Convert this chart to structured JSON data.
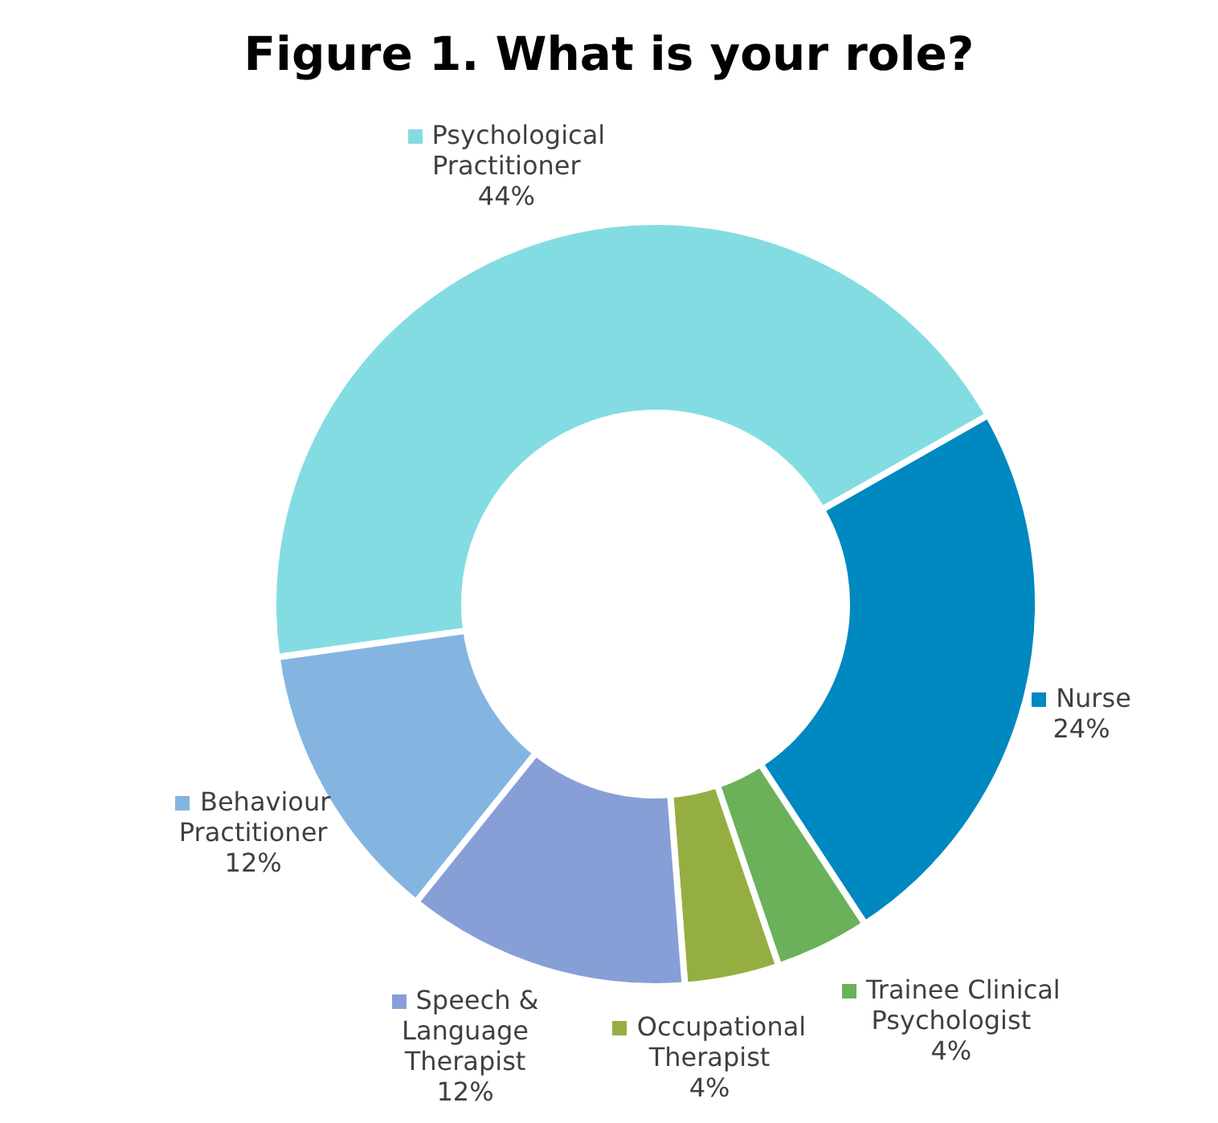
{
  "chart_data": {
    "type": "donut",
    "title": "Figure 1. What is your role?",
    "categories": [
      "Psychological Practitioner",
      "Nurse",
      "Trainee Clinical Psychologist",
      "Occupational Therapist",
      "Speech & Language Therapist",
      "Behaviour Practitioner"
    ],
    "values": [
      44,
      24,
      4,
      4,
      12,
      12
    ],
    "value_labels": [
      "44%",
      "24%",
      "4%",
      "4%",
      "12%",
      "12%"
    ],
    "colors": [
      "#84dce3",
      "#0088c0",
      "#6ab15a",
      "#95ae42",
      "#879fd6",
      "#84b5e0"
    ],
    "legend": true
  }
}
